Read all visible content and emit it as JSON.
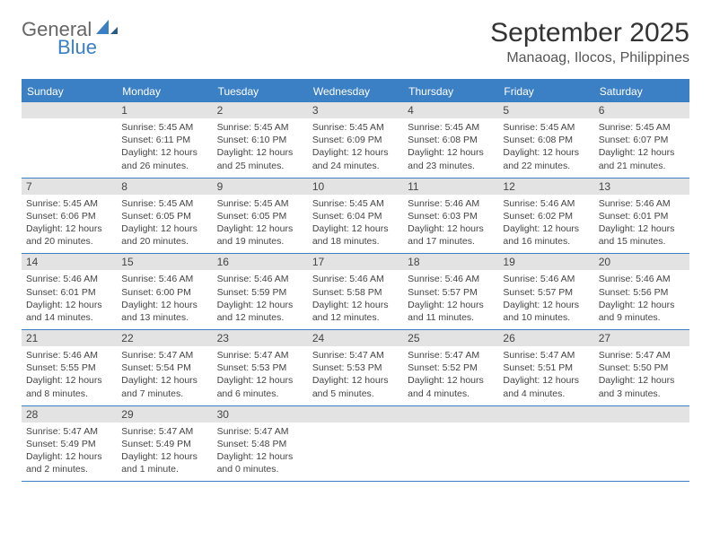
{
  "logo": {
    "text1": "General",
    "text2": "Blue"
  },
  "title": "September 2025",
  "location": "Manaoag, Ilocos, Philippines",
  "colors": {
    "brand": "#3b7fc4",
    "header_bg": "#3b7fc4",
    "header_text": "#ffffff",
    "daynum_bg": "#e3e3e3",
    "body_text": "#444444",
    "page_bg": "#ffffff"
  },
  "day_names": [
    "Sunday",
    "Monday",
    "Tuesday",
    "Wednesday",
    "Thursday",
    "Friday",
    "Saturday"
  ],
  "weeks": [
    [
      null,
      {
        "n": "1",
        "sr": "5:45 AM",
        "ss": "6:11 PM",
        "dl": "12 hours and 26 minutes."
      },
      {
        "n": "2",
        "sr": "5:45 AM",
        "ss": "6:10 PM",
        "dl": "12 hours and 25 minutes."
      },
      {
        "n": "3",
        "sr": "5:45 AM",
        "ss": "6:09 PM",
        "dl": "12 hours and 24 minutes."
      },
      {
        "n": "4",
        "sr": "5:45 AM",
        "ss": "6:08 PM",
        "dl": "12 hours and 23 minutes."
      },
      {
        "n": "5",
        "sr": "5:45 AM",
        "ss": "6:08 PM",
        "dl": "12 hours and 22 minutes."
      },
      {
        "n": "6",
        "sr": "5:45 AM",
        "ss": "6:07 PM",
        "dl": "12 hours and 21 minutes."
      }
    ],
    [
      {
        "n": "7",
        "sr": "5:45 AM",
        "ss": "6:06 PM",
        "dl": "12 hours and 20 minutes."
      },
      {
        "n": "8",
        "sr": "5:45 AM",
        "ss": "6:05 PM",
        "dl": "12 hours and 20 minutes."
      },
      {
        "n": "9",
        "sr": "5:45 AM",
        "ss": "6:05 PM",
        "dl": "12 hours and 19 minutes."
      },
      {
        "n": "10",
        "sr": "5:45 AM",
        "ss": "6:04 PM",
        "dl": "12 hours and 18 minutes."
      },
      {
        "n": "11",
        "sr": "5:46 AM",
        "ss": "6:03 PM",
        "dl": "12 hours and 17 minutes."
      },
      {
        "n": "12",
        "sr": "5:46 AM",
        "ss": "6:02 PM",
        "dl": "12 hours and 16 minutes."
      },
      {
        "n": "13",
        "sr": "5:46 AM",
        "ss": "6:01 PM",
        "dl": "12 hours and 15 minutes."
      }
    ],
    [
      {
        "n": "14",
        "sr": "5:46 AM",
        "ss": "6:01 PM",
        "dl": "12 hours and 14 minutes."
      },
      {
        "n": "15",
        "sr": "5:46 AM",
        "ss": "6:00 PM",
        "dl": "12 hours and 13 minutes."
      },
      {
        "n": "16",
        "sr": "5:46 AM",
        "ss": "5:59 PM",
        "dl": "12 hours and 12 minutes."
      },
      {
        "n": "17",
        "sr": "5:46 AM",
        "ss": "5:58 PM",
        "dl": "12 hours and 12 minutes."
      },
      {
        "n": "18",
        "sr": "5:46 AM",
        "ss": "5:57 PM",
        "dl": "12 hours and 11 minutes."
      },
      {
        "n": "19",
        "sr": "5:46 AM",
        "ss": "5:57 PM",
        "dl": "12 hours and 10 minutes."
      },
      {
        "n": "20",
        "sr": "5:46 AM",
        "ss": "5:56 PM",
        "dl": "12 hours and 9 minutes."
      }
    ],
    [
      {
        "n": "21",
        "sr": "5:46 AM",
        "ss": "5:55 PM",
        "dl": "12 hours and 8 minutes."
      },
      {
        "n": "22",
        "sr": "5:47 AM",
        "ss": "5:54 PM",
        "dl": "12 hours and 7 minutes."
      },
      {
        "n": "23",
        "sr": "5:47 AM",
        "ss": "5:53 PM",
        "dl": "12 hours and 6 minutes."
      },
      {
        "n": "24",
        "sr": "5:47 AM",
        "ss": "5:53 PM",
        "dl": "12 hours and 5 minutes."
      },
      {
        "n": "25",
        "sr": "5:47 AM",
        "ss": "5:52 PM",
        "dl": "12 hours and 4 minutes."
      },
      {
        "n": "26",
        "sr": "5:47 AM",
        "ss": "5:51 PM",
        "dl": "12 hours and 4 minutes."
      },
      {
        "n": "27",
        "sr": "5:47 AM",
        "ss": "5:50 PM",
        "dl": "12 hours and 3 minutes."
      }
    ],
    [
      {
        "n": "28",
        "sr": "5:47 AM",
        "ss": "5:49 PM",
        "dl": "12 hours and 2 minutes."
      },
      {
        "n": "29",
        "sr": "5:47 AM",
        "ss": "5:49 PM",
        "dl": "12 hours and 1 minute."
      },
      {
        "n": "30",
        "sr": "5:47 AM",
        "ss": "5:48 PM",
        "dl": "12 hours and 0 minutes."
      },
      null,
      null,
      null,
      null
    ]
  ],
  "labels": {
    "sunrise": "Sunrise:",
    "sunset": "Sunset:",
    "daylight": "Daylight:"
  }
}
